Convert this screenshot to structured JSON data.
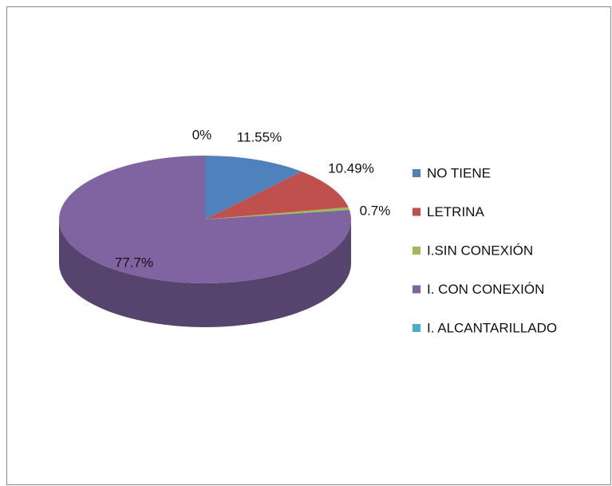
{
  "chart_data": {
    "type": "pie",
    "categories": [
      "NO TIENE",
      "LETRINA",
      "I.SIN CONEXIÓN",
      "I. CON CONEXIÓN",
      "I. ALCANTARILLADO"
    ],
    "values": [
      11.55,
      10.49,
      0.7,
      77.7,
      0
    ],
    "value_labels": [
      "11.55%",
      "10.49%",
      "0.7%",
      "77.7%",
      "0%"
    ],
    "colors": [
      "#4f81bd",
      "#c0504d",
      "#9bbb59",
      "#8064a2",
      "#4bacc6"
    ],
    "legend": "right"
  }
}
